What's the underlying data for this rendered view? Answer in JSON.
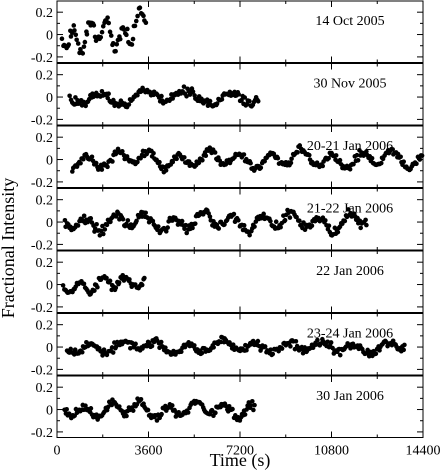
{
  "chart_data": {
    "type": "scatter",
    "ylabel": "Fractional Intensity",
    "xlabel": "Time (s)",
    "xlim": [
      0,
      14400
    ],
    "x_ticks": [
      "0",
      "3600",
      "7200",
      "10800",
      "14400"
    ],
    "x_tick_values": [
      0,
      3600,
      7200,
      10800,
      14400
    ],
    "ylim": [
      -0.25,
      0.3
    ],
    "y_ticks": [
      "0.2",
      "0",
      "-0.2"
    ],
    "y_tick_values": [
      0.2,
      0,
      -0.2
    ],
    "panels": [
      {
        "label": "14 Oct 2005",
        "t_start": 200,
        "t_end": 3500,
        "amplitude": 0.09,
        "period": 650,
        "noise": 0.05,
        "seed": 11,
        "trend": 0.06
      },
      {
        "label": "30 Nov 2005",
        "t_start": 500,
        "t_end": 7950,
        "amplitude": 0.05,
        "period": 1700,
        "noise": 0.04,
        "seed": 23,
        "trend": 0.0
      },
      {
        "label": "20-21 Jan 2006",
        "t_start": 600,
        "t_end": 14400,
        "amplitude": 0.06,
        "period": 1200,
        "noise": 0.035,
        "seed": 37,
        "trend": 0.0
      },
      {
        "label": "21-22 Jan 2006",
        "t_start": 300,
        "t_end": 12200,
        "amplitude": 0.06,
        "period": 1150,
        "noise": 0.04,
        "seed": 41,
        "trend": 0.0
      },
      {
        "label": "22 Jan 2006",
        "t_start": 250,
        "t_end": 3450,
        "amplitude": 0.05,
        "period": 900,
        "noise": 0.03,
        "seed": 53,
        "trend": 0.03
      },
      {
        "label": "23-24 Jan 2006",
        "t_start": 400,
        "t_end": 13700,
        "amplitude": 0.04,
        "period": 1300,
        "noise": 0.035,
        "seed": 67,
        "trend": 0.0
      },
      {
        "label": "30 Jan 2006",
        "t_start": 300,
        "t_end": 7800,
        "amplitude": 0.05,
        "period": 1100,
        "noise": 0.04,
        "seed": 79,
        "trend": 0.0
      }
    ],
    "grid": false,
    "legend": "none"
  }
}
